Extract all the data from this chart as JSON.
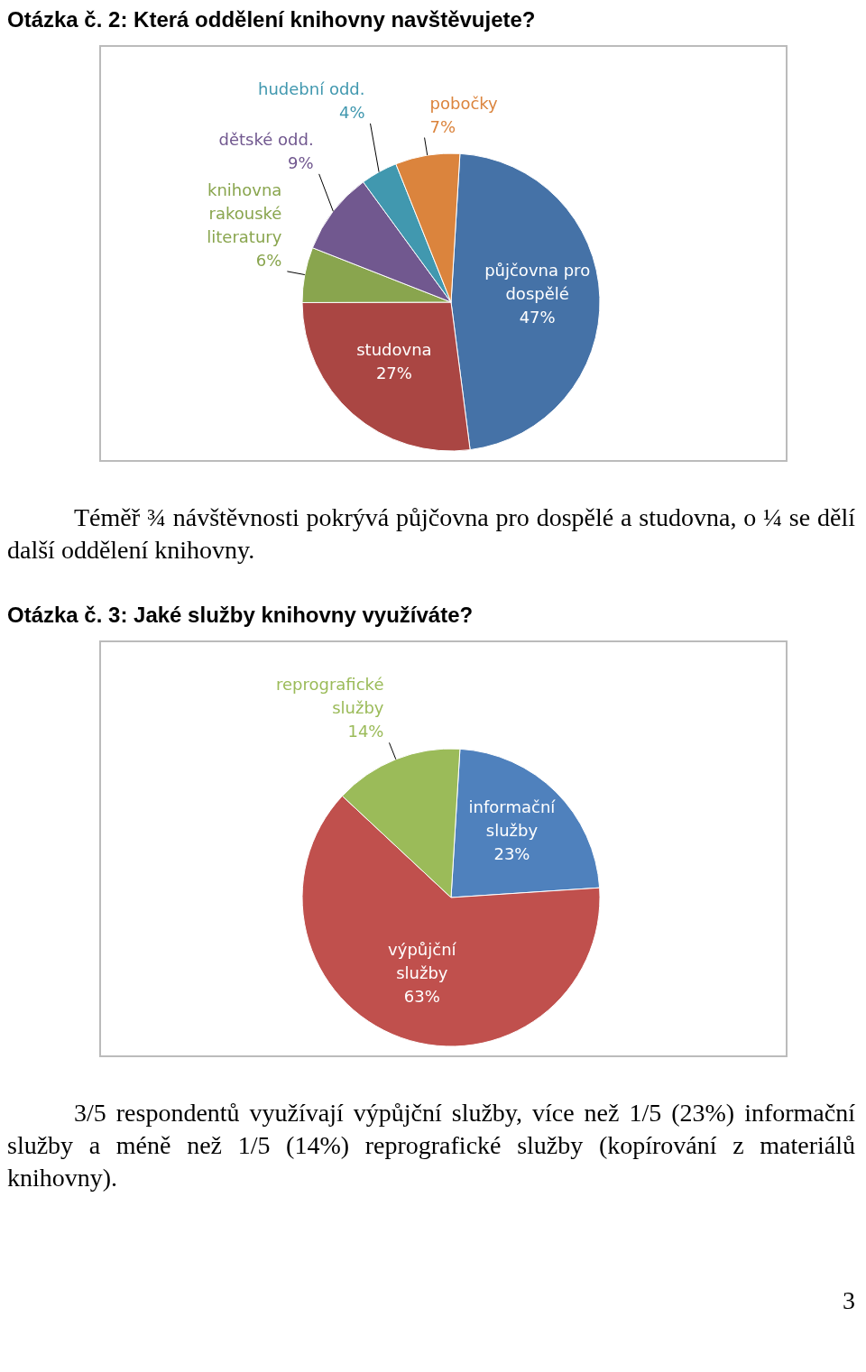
{
  "chart_data": [
    {
      "type": "pie",
      "title": "Otázka č. 2: Která oddělení knihovny navštěvujete?",
      "categories": [
        "půjčovna pro dospělé",
        "studovna",
        "knihovna rakouské literatury",
        "dětské odd.",
        "hudební odd.",
        "pobočky"
      ],
      "values": [
        47,
        27,
        6,
        9,
        4,
        7
      ],
      "colors": [
        "#4572a7",
        "#aa4643",
        "#89a54e",
        "#71588f",
        "#4198af",
        "#db843d"
      ],
      "value_labels": [
        "47%",
        "27%",
        "6%",
        "9%",
        "4%",
        "7%"
      ],
      "annotations": [
        "Téměř ¾ návštěvnosti pokrývá půjčovna pro dospělé a studovna, o ¼ se dělí další oddělení knihovny."
      ]
    },
    {
      "type": "pie",
      "title": "Otázka č. 3: Jaké služby knihovny využíváte?",
      "categories": [
        "informační služby",
        "výpůjční služby",
        "reprografické služby"
      ],
      "values": [
        23,
        63,
        14
      ],
      "colors": [
        "#4f81bd",
        "#c0504d",
        "#9bbb59"
      ],
      "value_labels": [
        "23%",
        "63%",
        "14%"
      ],
      "annotations": [
        "3/5 respondentů využívají výpůjční služby, více než 1/5 (23%) informační služby a méně než 1/5 (14%) reprografické služby (kopírování z materiálů knihovny).",
        "3"
      ]
    }
  ]
}
